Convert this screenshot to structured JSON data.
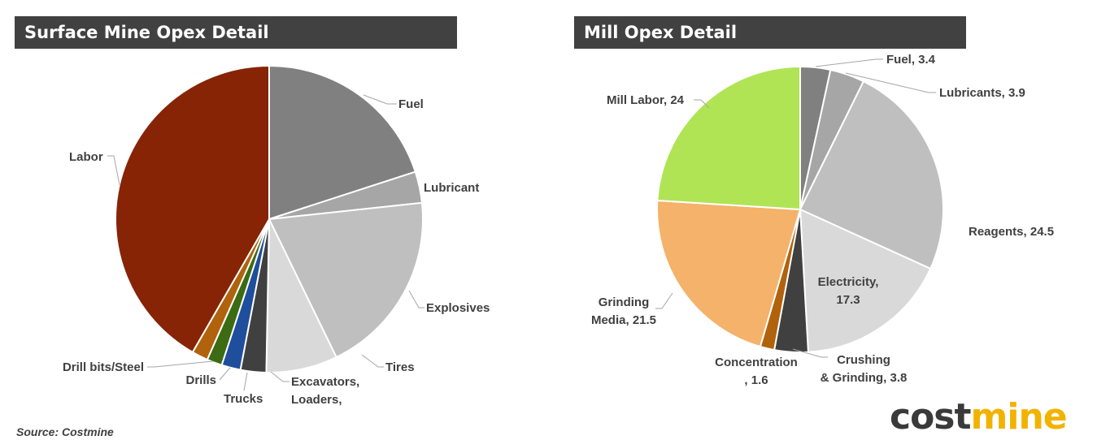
{
  "source_note": "Source: Costmine",
  "logo": {
    "part1": "cost",
    "part2": "mine",
    "color1": "#3a3a3a",
    "color2": "#f2b300"
  },
  "chart_data": [
    {
      "type": "pie",
      "title": "Surface Mine Opex Detail",
      "legend": "none",
      "slices": [
        {
          "label": "Fuel",
          "value": 20.0,
          "color": "#808080"
        },
        {
          "label": "Lubricant",
          "value": 3.3,
          "color": "#a6a6a6"
        },
        {
          "label": "Explosives",
          "value": 19.5,
          "color": "#bfbfbf"
        },
        {
          "label": "Tires",
          "value": 7.5,
          "color": "#d9d9d9"
        },
        {
          "label": "Excavators, Loaders,",
          "value": 2.7,
          "color": "#404040"
        },
        {
          "label": "Trucks",
          "value": 2.0,
          "color": "#1f4e9c"
        },
        {
          "label": "Drills",
          "value": 1.6,
          "color": "#3d6b14"
        },
        {
          "label": "Drill bits/Steel",
          "value": 1.7,
          "color": "#b0620c"
        },
        {
          "label": "Labor",
          "value": 41.7,
          "color": "#862405"
        }
      ]
    },
    {
      "type": "pie",
      "title": "Mill Opex Detail",
      "legend": "none",
      "slices": [
        {
          "label": "Fuel, 3.4",
          "value": 3.4,
          "color": "#808080"
        },
        {
          "label": "Lubricants, 3.9",
          "value": 3.9,
          "color": "#a6a6a6"
        },
        {
          "label": "Reagents, 24.5",
          "value": 24.5,
          "color": "#bfbfbf"
        },
        {
          "label": "Electricity, 17.3",
          "value": 17.3,
          "color": "#d9d9d9"
        },
        {
          "label": "Crushing & Grinding, 3.8",
          "value": 3.8,
          "color": "#404040"
        },
        {
          "label": "Concentration , 1.6",
          "value": 1.6,
          "color": "#b0620c"
        },
        {
          "label": "Grinding Media, 21.5",
          "value": 21.5,
          "color": "#f5b26b"
        },
        {
          "label": "Mill Labor, 24",
          "value": 24,
          "color": "#b0e455"
        }
      ]
    }
  ]
}
